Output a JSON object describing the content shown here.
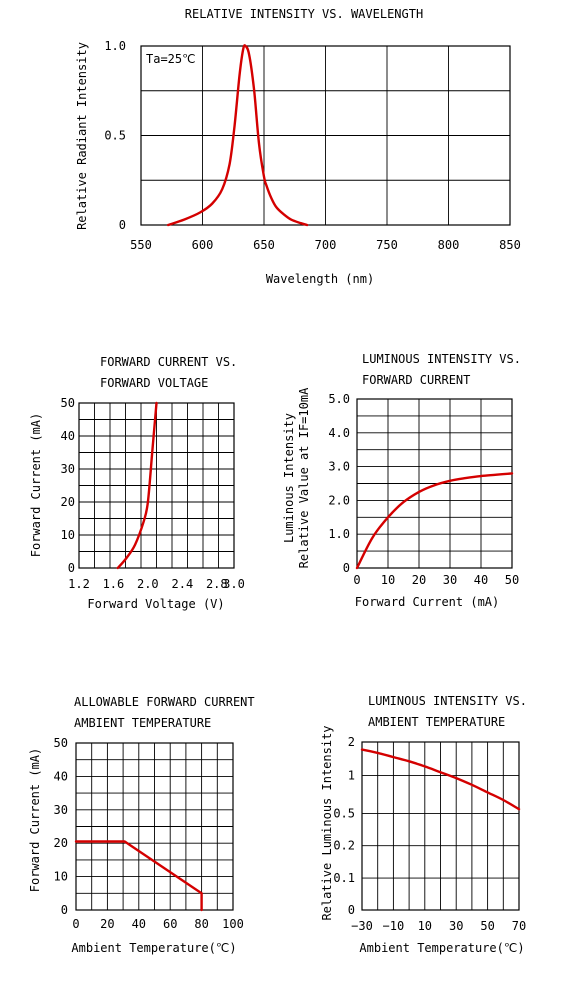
{
  "chart_data": [
    {
      "type": "line",
      "title": "RELATIVE INTENSITY VS. WAVELENGTH",
      "xlabel": "Wavelength (nm)",
      "ylabel": "Relative Radiant Intensity",
      "annotation": "Ta=25℃",
      "xlim": [
        550,
        850
      ],
      "ylim": [
        0,
        1.0
      ],
      "x_ticks": [
        "550",
        "600",
        "650",
        "700",
        "750",
        "800",
        "850"
      ],
      "y_ticks": [
        "0",
        "0.5",
        "1.0"
      ],
      "grid": "horizontal lines at 0.25, 0.5, 0.75 and vertical lines every 50 nm",
      "color": "#d40000",
      "x": [
        572,
        585,
        598,
        608,
        616,
        622,
        626,
        630,
        633,
        635,
        638,
        642,
        646,
        650,
        652,
        656,
        660,
        666,
        672,
        680,
        685
      ],
      "y": [
        0,
        0.03,
        0.07,
        0.12,
        0.2,
        0.34,
        0.55,
        0.83,
        0.98,
        1.0,
        0.95,
        0.75,
        0.45,
        0.27,
        0.22,
        0.15,
        0.1,
        0.06,
        0.03,
        0.01,
        0
      ]
    },
    {
      "type": "line",
      "title": [
        "FORWARD CURRENT VS.",
        "FORWARD VOLTAGE"
      ],
      "xlabel": "Forward Voltage (V)",
      "ylabel": "Forward Current (mA)",
      "xlim": [
        1.2,
        3.0
      ],
      "ylim": [
        0,
        50
      ],
      "x_ticks": [
        "1.2",
        "1.6",
        "2.0",
        "2.4",
        "2.8",
        "3.0"
      ],
      "y_ticks": [
        "0",
        "10",
        "20",
        "30",
        "40",
        "50"
      ],
      "grid": "on",
      "color": "#d40000",
      "x": [
        1.65,
        1.75,
        1.85,
        1.95,
        2.0,
        2.05,
        2.1
      ],
      "y": [
        0,
        3,
        7,
        14,
        20,
        35,
        50
      ]
    },
    {
      "type": "line",
      "title": [
        "LUMINOUS INTENSITY VS.",
        "FORWARD CURRENT"
      ],
      "xlabel": "Forward Current (mA)",
      "ylabel": [
        "Luminous Intensity",
        "Relative Value at IF=10mA"
      ],
      "xlim": [
        0,
        50
      ],
      "ylim": [
        0,
        5.0
      ],
      "x_ticks": [
        "0",
        "10",
        "20",
        "30",
        "40",
        "50"
      ],
      "y_ticks": [
        "0",
        "1.0",
        "2.0",
        "3.0",
        "4.0",
        "5.0"
      ],
      "grid": "on",
      "color": "#d40000",
      "x": [
        0,
        5,
        10,
        15,
        20,
        25,
        30,
        35,
        40,
        45,
        50
      ],
      "y": [
        0,
        0.9,
        1.5,
        1.95,
        2.25,
        2.45,
        2.58,
        2.66,
        2.72,
        2.76,
        2.8
      ]
    },
    {
      "type": "line",
      "title": [
        "ALLOWABLE FORWARD CURRENT",
        "AMBIENT TEMPERATURE"
      ],
      "xlabel": "Ambient Temperature(℃)",
      "ylabel": "Forward Current (mA)",
      "xlim": [
        0,
        100
      ],
      "ylim": [
        0,
        50
      ],
      "x_ticks": [
        "0",
        "20",
        "40",
        "60",
        "80",
        "100"
      ],
      "y_ticks": [
        "0",
        "10",
        "20",
        "30",
        "40",
        "50"
      ],
      "grid": "on",
      "color": "#d40000",
      "x": [
        0,
        31,
        80,
        80
      ],
      "y": [
        20.5,
        20.5,
        5,
        0
      ]
    },
    {
      "type": "line",
      "title": [
        "LUMINOUS INTENSITY VS.",
        "AMBIENT TEMPERATURE"
      ],
      "xlabel": "Ambient Temperature(℃)",
      "ylabel": [
        "Relative  Luminous Intensity"
      ],
      "xlim": [
        -30,
        70
      ],
      "ylim": [
        0,
        2
      ],
      "x_ticks": [
        "−30",
        "−10",
        "10",
        "30",
        "50",
        "70"
      ],
      "y_ticks": [
        "0",
        "0.1",
        "0.2",
        "0.5",
        "1",
        "2"
      ],
      "grid": "on",
      "color": "#d40000",
      "x": [
        -30,
        -20,
        -10,
        0,
        10,
        20,
        30,
        40,
        50,
        60,
        70
      ],
      "y_level": [
        0.955,
        0.935,
        0.91,
        0.885,
        0.855,
        0.82,
        0.785,
        0.745,
        0.7,
        0.655,
        0.6
      ]
    }
  ]
}
